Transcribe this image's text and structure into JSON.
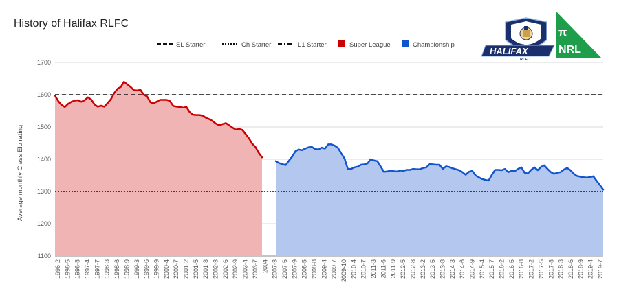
{
  "chart_data": {
    "type": "area",
    "title": "History of Halifax RLFC",
    "xlabel": "",
    "ylabel": "Average monthly Class Elo rating",
    "ylim": [
      1100,
      1700
    ],
    "y_ticks": [
      "1100",
      "1200",
      "1300",
      "1400",
      "1500",
      "1600",
      "1700"
    ],
    "grid": true,
    "legend_position": "top-center",
    "legend": [
      {
        "label": "SL Starter",
        "style": "dashed"
      },
      {
        "label": "Ch Starter",
        "style": "dotted"
      },
      {
        "label": "L1 Starter",
        "style": "dash-dot"
      },
      {
        "label": "Super League",
        "color": "#cc0000"
      },
      {
        "label": "Championship",
        "color": "#1155cc"
      }
    ],
    "reference_lines": [
      {
        "name": "SL Starter",
        "value": 1600,
        "style": "dashed"
      },
      {
        "name": "Ch Starter",
        "value": 1300,
        "style": "dotted"
      }
    ],
    "x_labels": [
      "1996-2",
      "1996-5",
      "1996-8",
      "1997-4",
      "1997-7",
      "1998-3",
      "1998-6",
      "1998-9",
      "1999-3",
      "1999-6",
      "1999-9",
      "2000-4",
      "2000-7",
      "2001-2",
      "2001-5",
      "2001-8",
      "2002-3",
      "2002-6",
      "2002-9",
      "2003-4",
      "2003-7",
      "2004",
      "2007-3",
      "2007-6",
      "2007-9",
      "2008-5",
      "2008-8",
      "2009-4",
      "2009-7",
      "2009-10",
      "2010-4",
      "2010-7",
      "2011-3",
      "2011-6",
      "2011-9",
      "2012-5",
      "2012-8",
      "2013-2",
      "2013-5",
      "2013-8",
      "2014-3",
      "2014-6",
      "2014-9",
      "2015-4",
      "2015-7",
      "2016-2",
      "2016-5",
      "2016-8",
      "2017-2",
      "2017-5",
      "2017-8",
      "2018-3",
      "2018-6",
      "2018-9",
      "2019-4",
      "2019-7"
    ],
    "series": [
      {
        "name": "Super League",
        "color": "#cc0000",
        "fill": "#f0b4b4",
        "values": [
          1597,
          1580,
          1568,
          1562,
          1572,
          1578,
          1582,
          1583,
          1578,
          1583,
          1592,
          1585,
          1570,
          1563,
          1566,
          1563,
          1574,
          1586,
          1605,
          1618,
          1624,
          1640,
          1632,
          1624,
          1614,
          1613,
          1615,
          1600,
          1595,
          1577,
          1573,
          1579,
          1584,
          1584,
          1584,
          1580,
          1565,
          1563,
          1562,
          1560,
          1562,
          1546,
          1538,
          1537,
          1537,
          1535,
          1528,
          1524,
          1518,
          1510,
          1505,
          1509,
          1512,
          1505,
          1498,
          1492,
          1494,
          1491,
          1478,
          1465,
          1448,
          1438,
          1420,
          1406
        ]
      },
      {
        "name": "Championship",
        "color": "#1155cc",
        "fill": "#b4c7ee",
        "values": [
          1394,
          1388,
          1385,
          1382,
          1395,
          1408,
          1425,
          1430,
          1428,
          1433,
          1437,
          1438,
          1432,
          1430,
          1436,
          1433,
          1446,
          1446,
          1442,
          1435,
          1418,
          1402,
          1370,
          1370,
          1375,
          1377,
          1383,
          1384,
          1387,
          1400,
          1396,
          1394,
          1378,
          1361,
          1362,
          1365,
          1363,
          1362,
          1365,
          1364,
          1367,
          1367,
          1370,
          1369,
          1369,
          1373,
          1375,
          1385,
          1384,
          1383,
          1383,
          1370,
          1378,
          1376,
          1372,
          1369,
          1366,
          1360,
          1352,
          1361,
          1364,
          1350,
          1344,
          1339,
          1336,
          1334,
          1352,
          1367,
          1367,
          1366,
          1370,
          1360,
          1364,
          1363,
          1370,
          1375,
          1358,
          1356,
          1367,
          1375,
          1366,
          1376,
          1381,
          1370,
          1360,
          1355,
          1358,
          1360,
          1368,
          1373,
          1366,
          1355,
          1348,
          1346,
          1344,
          1343,
          1345,
          1347,
          1333,
          1320,
          1306
        ]
      }
    ]
  },
  "logos": {
    "halifax": {
      "text": "HALIFAX",
      "subtext": "RLFC"
    },
    "nrl": {
      "symbol": "π",
      "text": "NRL"
    }
  }
}
